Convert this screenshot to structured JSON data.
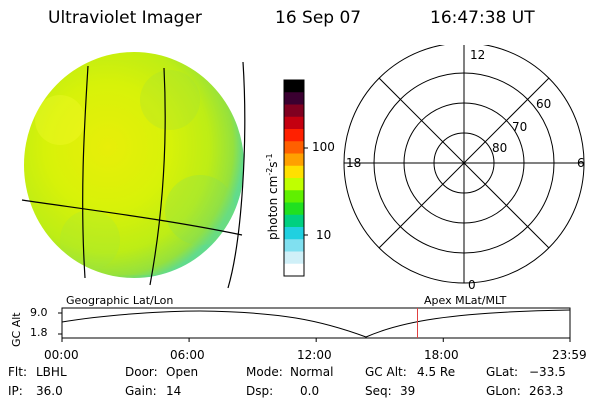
{
  "header": {
    "instrument": "Ultraviolet Imager",
    "date": "16 Sep 07",
    "time": "16:47:38 UT"
  },
  "colorbar": {
    "unit_label": "photon cm",
    "unit_exp": "-2",
    "unit_mid": "s",
    "unit_exp2": "-1",
    "tick_high": "100",
    "tick_low": "10",
    "colors": [
      "#000000",
      "#3a0030",
      "#800020",
      "#c40010",
      "#ff2000",
      "#ff6000",
      "#ffa000",
      "#ffe000",
      "#c0ff00",
      "#60f000",
      "#20e020",
      "#00d080",
      "#20d0e0",
      "#80e0f0",
      "#d0f0f8",
      "#ffffff"
    ]
  },
  "polar": {
    "mlt_top": "12",
    "mlt_bottom": "0",
    "mlt_left": "18",
    "mlt_right": "6",
    "lat_60": "60",
    "lat_70": "70",
    "lat_80": "80"
  },
  "orbit": {
    "left_caption": "Geographic Lat/Lon",
    "right_caption": "Apex  MLat/MLT",
    "axis_title": "GC Alt",
    "y_top": "9.0",
    "y_bottom": "1.8",
    "times": [
      "00:00",
      "06:00",
      "12:00",
      "18:00",
      "23:59"
    ],
    "current_time": "16:47"
  },
  "info": {
    "flt_key": "Flt:",
    "flt_val": "LBHL",
    "ip_key": "IP:",
    "ip_val": "36.0",
    "door_key": "Door:",
    "door_val": "Open",
    "gain_key": "Gain:",
    "gain_val": "14",
    "mode_key": "Mode:",
    "mode_val": "Normal",
    "dsp_key": "Dsp:",
    "dsp_val": "0.0",
    "gcalt_key": "GC Alt:",
    "gcalt_val": "4.5 Re",
    "seq_key": "Seq:",
    "seq_val": "39",
    "glat_key": "GLat:",
    "glat_val": "−33.5",
    "glon_key": "GLon:",
    "glon_val": "263.3"
  },
  "colors": {
    "marker": "#e04040",
    "disc_base": "#c8f000"
  }
}
